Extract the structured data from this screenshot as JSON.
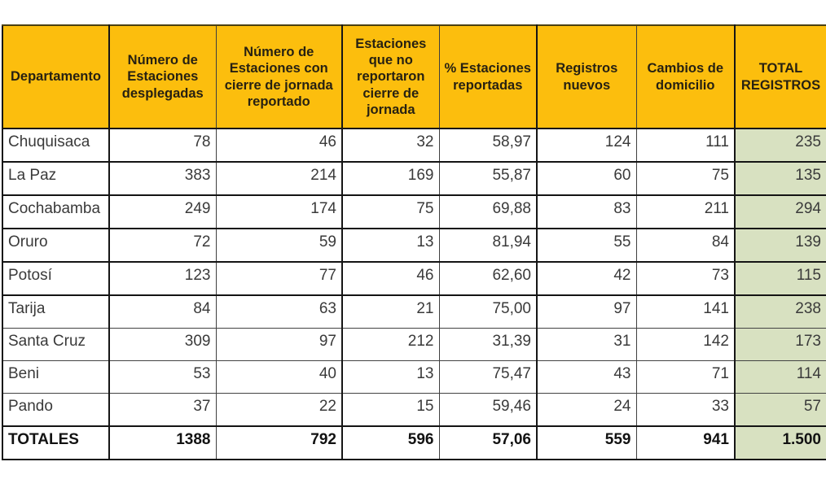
{
  "page": {
    "background": "#ffffff"
  },
  "colors": {
    "header_bg": "#FCBE0D",
    "total_column_bg": "#D8E1C1",
    "border_dark": "#161616",
    "border_light": "#424242",
    "header_text": "#272112",
    "data_text": "#3a3a3a",
    "totals_text": "#121212"
  },
  "table": {
    "header_display": [
      "Departamento",
      "Número de\nEstaciones\ndesplegadas",
      "Número de\nEstaciones con\ncierre de jornada\nreportado",
      "Estaciones\nque no\nreportaron\ncierre de\njornada",
      "% Estaciones\nreportadas",
      "Registros\nnuevos",
      "Cambios de\ndomicilio",
      "TOTAL\nREGISTROS"
    ]
  },
  "chart_data": {
    "type": "table",
    "columns": [
      "Departamento",
      "Número de Estaciones desplegadas",
      "Número de Estaciones con cierre de jornada reportado",
      "Estaciones que no reportaron cierre de jornada",
      "% Estaciones reportadas",
      "Registros nuevos",
      "Cambios de domicilio",
      "TOTAL REGISTROS"
    ],
    "rows": [
      [
        "Chuquisaca",
        "78",
        "46",
        "32",
        "58,97",
        "124",
        "111",
        "235"
      ],
      [
        "La Paz",
        "383",
        "214",
        "169",
        "55,87",
        "60",
        "75",
        "135"
      ],
      [
        "Cochabamba",
        "249",
        "174",
        "75",
        "69,88",
        "83",
        "211",
        "294"
      ],
      [
        "Oruro",
        "72",
        "59",
        "13",
        "81,94",
        "55",
        "84",
        "139"
      ],
      [
        "Potosí",
        "123",
        "77",
        "46",
        "62,60",
        "42",
        "73",
        "115"
      ],
      [
        "Tarija",
        "84",
        "63",
        "21",
        "75,00",
        "97",
        "141",
        "238"
      ],
      [
        "Santa Cruz",
        "309",
        "97",
        "212",
        "31,39",
        "31",
        "142",
        "173"
      ],
      [
        "Beni",
        "53",
        "40",
        "13",
        "75,47",
        "43",
        "71",
        "114"
      ],
      [
        "Pando",
        "37",
        "22",
        "15",
        "59,46",
        "24",
        "33",
        "57"
      ]
    ],
    "totals_row": [
      "TOTALES",
      "1388",
      "792",
      "596",
      "57,06",
      "559",
      "941",
      "1.500"
    ],
    "layout": {
      "last_column_clipped_at_right_edge": true,
      "decimal_separator": "comma",
      "grid": true
    }
  }
}
